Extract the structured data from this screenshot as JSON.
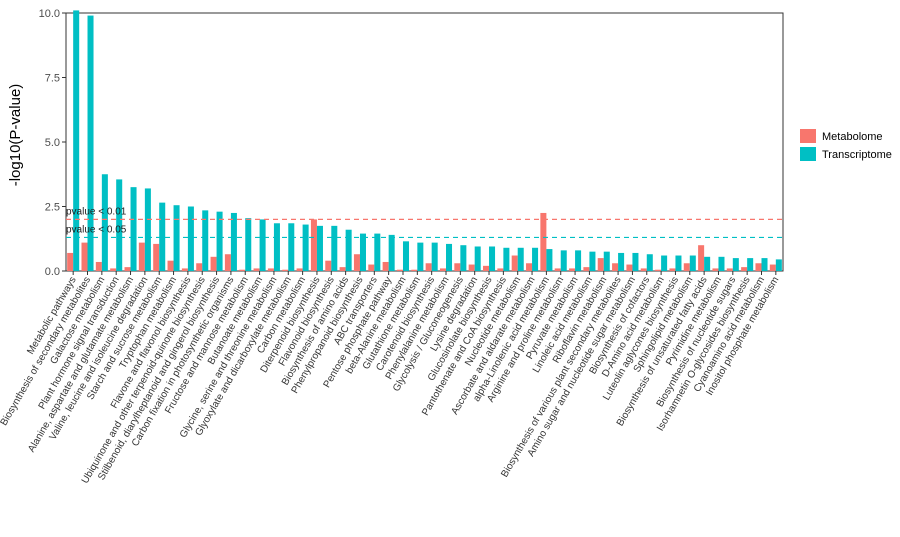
{
  "chart_data": {
    "type": "bar",
    "ylabel": "-log10(P-value)",
    "xlabel": "",
    "ylim": [
      0,
      10
    ],
    "yticks": [
      "0.0",
      "2.5",
      "5.0",
      "7.5",
      "10.0"
    ],
    "grid": false,
    "legend_position": "right",
    "categories": [
      "Metabolic pathways",
      "Biosynthesis of secondary metabolites",
      "Galactose metabolism",
      "Plant hormone signal transduction",
      "Alanine, aspartate and glutamate metabolism",
      "Valine, leucine and isoleucine degradation",
      "Starch and sucrose metabolism",
      "Tryptophan metabolism",
      "Flavone and flavonol biosynthesis",
      "Ubiquinone and other terpenoid-quinone biosynthesis",
      "Stilbenoid, diarylheptanoid and gingerol biosynthesis",
      "Carbon fixation in photosynthetic organisms",
      "Fructose and mannose metabolism",
      "Butanoate metabolism",
      "Glycine, serine and threonine metabolism",
      "Glyoxylate and dicarboxylate metabolism",
      "Carbon metabolism",
      "Diterpenoid biosynthesis",
      "Flavonoid biosynthesis",
      "Biosynthesis of amino acids",
      "Phenylpropanoid biosynthesis",
      "ABC transporters",
      "Pentose phosphate pathway",
      "beta-Alanine metabolism",
      "Glutathione metabolism",
      "Carotenoid biosynthesis",
      "Phenylalanine metabolism",
      "Glycolysis / Gluconeogenesis",
      "Lysine degradation",
      "Glucosinolate biosynthesis",
      "Pantothenate and CoA biosynthesis",
      "Nucleotide metabolism",
      "Ascorbate and aldarate metabolism",
      "alpha-Linolenic acid metabolism",
      "Arginine and proline metabolism",
      "Pyruvate metabolism",
      "Linoleic acid metabolism",
      "Riboflavin metabolism",
      "Biosynthesis of various plant secondary metabolites",
      "Amino sugar and nucleotide sugar metabolism",
      "Biosynthesis of cofactors",
      "D-Amino acid metabolism",
      "Luteolin aglycones biosynthesis",
      "Sphingolipid metabolism",
      "Biosynthesis of unsaturated fatty acids",
      "Pyrimidine metabolism",
      "Biosynthesis of nucleotide sugars",
      "Isorhamnetin O-glycosides biosynthesis",
      "Cyanoamino acid metabolism",
      "Inositol phosphate metabolism"
    ],
    "series": [
      {
        "name": "Metabolome",
        "color": "#F8766D",
        "values": [
          0.7,
          1.1,
          0.35,
          0.1,
          0.15,
          1.1,
          1.05,
          0.4,
          0.1,
          0.3,
          0.55,
          0.65,
          0.05,
          0.1,
          0.1,
          0.05,
          0.1,
          2.0,
          0.4,
          0.15,
          0.65,
          0.25,
          0.35,
          0.05,
          0.05,
          0.3,
          0.1,
          0.3,
          0.25,
          0.2,
          0.1,
          0.6,
          0.3,
          2.25,
          0.1,
          0.1,
          0.15,
          0.5,
          0.3,
          0.25,
          0.1,
          0.05,
          0.1,
          0.3,
          1.0,
          0.1,
          0.1,
          0.15,
          0.3,
          0.25
        ]
      },
      {
        "name": "Transcriptome",
        "color": "#00BFC4",
        "values": [
          10.1,
          9.9,
          3.75,
          3.55,
          3.25,
          3.2,
          2.65,
          2.55,
          2.5,
          2.35,
          2.3,
          2.25,
          2.05,
          2.0,
          1.85,
          1.85,
          1.8,
          1.75,
          1.75,
          1.6,
          1.45,
          1.45,
          1.4,
          1.15,
          1.1,
          1.1,
          1.05,
          1.0,
          0.95,
          0.95,
          0.9,
          0.9,
          0.9,
          0.85,
          0.8,
          0.8,
          0.75,
          0.75,
          0.7,
          0.7,
          0.65,
          0.6,
          0.6,
          0.6,
          0.55,
          0.55,
          0.5,
          0.5,
          0.5,
          0.45
        ]
      }
    ],
    "thresholds": [
      {
        "label": "pvalue < 0.01",
        "value": 2.0,
        "color": "#F8766D"
      },
      {
        "label": "pvalue < 0.05",
        "value": 1.3,
        "color": "#00BFC4"
      }
    ]
  }
}
